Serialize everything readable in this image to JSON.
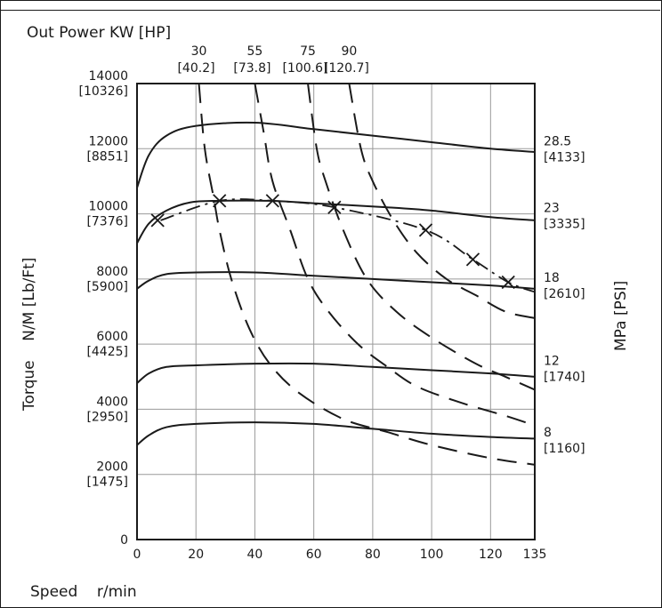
{
  "chart_data": {
    "type": "line",
    "title": "Out Power KW [HP]",
    "xlabel": "Speed    r/min",
    "ylabel": "Torque    N/M [Lb/Ft]",
    "y2label": "MPa [PSI]",
    "xlim": [
      0,
      135
    ],
    "ylim": [
      0,
      14000
    ],
    "grid": true,
    "x_ticks": [
      {
        "v": 0,
        "label": "0"
      },
      {
        "v": 20,
        "label": "20"
      },
      {
        "v": 40,
        "label": "40"
      },
      {
        "v": 60,
        "label": "60"
      },
      {
        "v": 80,
        "label": "80"
      },
      {
        "v": 100,
        "label": "100"
      },
      {
        "v": 120,
        "label": "120"
      },
      {
        "v": 135,
        "label": "135"
      }
    ],
    "y_ticks": [
      {
        "v": 0,
        "label": "0",
        "sub": ""
      },
      {
        "v": 2000,
        "label": "2000",
        "sub": "[1475]"
      },
      {
        "v": 4000,
        "label": "4000",
        "sub": "[2950]"
      },
      {
        "v": 6000,
        "label": "6000",
        "sub": "[4425]"
      },
      {
        "v": 8000,
        "label": "8000",
        "sub": "[5900]"
      },
      {
        "v": 10000,
        "label": "10000",
        "sub": "[7376]"
      },
      {
        "v": 12000,
        "label": "12000",
        "sub": "[8851]"
      },
      {
        "v": 14000,
        "label": "14000",
        "sub": "[10326]"
      }
    ],
    "pressure_curves": [
      {
        "label": "28.5",
        "sub": "[4133]",
        "label_y": 12000,
        "points": [
          [
            0,
            10800
          ],
          [
            4,
            11800
          ],
          [
            10,
            12400
          ],
          [
            20,
            12700
          ],
          [
            40,
            12800
          ],
          [
            60,
            12600
          ],
          [
            80,
            12400
          ],
          [
            100,
            12200
          ],
          [
            120,
            12000
          ],
          [
            135,
            11900
          ]
        ]
      },
      {
        "label": "23",
        "sub": "[3335]",
        "label_y": 9950,
        "points": [
          [
            0,
            9100
          ],
          [
            4,
            9700
          ],
          [
            10,
            10100
          ],
          [
            18,
            10350
          ],
          [
            28,
            10400
          ],
          [
            45,
            10400
          ],
          [
            65,
            10300
          ],
          [
            85,
            10200
          ],
          [
            100,
            10100
          ],
          [
            120,
            9900
          ],
          [
            135,
            9800
          ]
        ]
      },
      {
        "label": "18",
        "sub": "[2610]",
        "label_y": 7800,
        "points": [
          [
            0,
            7700
          ],
          [
            4,
            7950
          ],
          [
            10,
            8150
          ],
          [
            20,
            8200
          ],
          [
            40,
            8200
          ],
          [
            60,
            8100
          ],
          [
            80,
            8000
          ],
          [
            100,
            7900
          ],
          [
            120,
            7800
          ],
          [
            135,
            7700
          ]
        ]
      },
      {
        "label": "12",
        "sub": "[1740]",
        "label_y": 5250,
        "points": [
          [
            0,
            4800
          ],
          [
            4,
            5100
          ],
          [
            10,
            5300
          ],
          [
            20,
            5350
          ],
          [
            40,
            5400
          ],
          [
            60,
            5400
          ],
          [
            80,
            5300
          ],
          [
            100,
            5200
          ],
          [
            120,
            5100
          ],
          [
            135,
            5000
          ]
        ]
      },
      {
        "label": "8",
        "sub": "[1160]",
        "label_y": 3050,
        "points": [
          [
            0,
            2900
          ],
          [
            4,
            3200
          ],
          [
            10,
            3450
          ],
          [
            20,
            3550
          ],
          [
            40,
            3600
          ],
          [
            60,
            3550
          ],
          [
            80,
            3400
          ],
          [
            100,
            3250
          ],
          [
            120,
            3150
          ],
          [
            135,
            3100
          ]
        ]
      }
    ],
    "power_curves": [
      {
        "label": "30",
        "sub": "[40.2]",
        "points": [
          [
            21,
            14000
          ],
          [
            23,
            12000
          ],
          [
            26,
            10500
          ],
          [
            28,
            9500
          ],
          [
            32,
            8000
          ],
          [
            38,
            6500
          ],
          [
            45,
            5400
          ],
          [
            55,
            4500
          ],
          [
            70,
            3700
          ],
          [
            85,
            3300
          ],
          [
            100,
            2900
          ],
          [
            120,
            2500
          ],
          [
            135,
            2300
          ]
        ]
      },
      {
        "label": "55",
        "sub": "[73.8]",
        "points": [
          [
            40,
            14000
          ],
          [
            43,
            12500
          ],
          [
            46,
            11000
          ],
          [
            52,
            9500
          ],
          [
            58,
            8000
          ],
          [
            65,
            7000
          ],
          [
            75,
            6000
          ],
          [
            85,
            5300
          ],
          [
            95,
            4700
          ],
          [
            110,
            4200
          ],
          [
            125,
            3800
          ],
          [
            135,
            3500
          ]
        ]
      },
      {
        "label": "75",
        "sub": "[100.6]",
        "points": [
          [
            58,
            14000
          ],
          [
            61,
            12000
          ],
          [
            64,
            11000
          ],
          [
            70,
            9500
          ],
          [
            78,
            8000
          ],
          [
            88,
            7000
          ],
          [
            100,
            6200
          ],
          [
            115,
            5400
          ],
          [
            125,
            5000
          ],
          [
            135,
            4600
          ]
        ]
      },
      {
        "label": "90",
        "sub": "[120.7]",
        "points": [
          [
            72,
            14000
          ],
          [
            76,
            12000
          ],
          [
            80,
            11000
          ],
          [
            87,
            9800
          ],
          [
            95,
            8800
          ],
          [
            105,
            8000
          ],
          [
            115,
            7500
          ],
          [
            125,
            7000
          ],
          [
            135,
            6800
          ]
        ]
      }
    ],
    "max_line": {
      "points": [
        [
          8,
          9800
        ],
        [
          28,
          10400
        ],
        [
          46,
          10400
        ],
        [
          67,
          10200
        ],
        [
          98,
          9500
        ],
        [
          114,
          8600
        ],
        [
          126,
          7900
        ],
        [
          135,
          7600
        ]
      ]
    },
    "markers": [
      [
        7,
        9800
      ],
      [
        28,
        10400
      ],
      [
        46,
        10400
      ],
      [
        67,
        10200
      ],
      [
        98,
        9500
      ],
      [
        114,
        8600
      ],
      [
        126,
        7900
      ]
    ]
  }
}
